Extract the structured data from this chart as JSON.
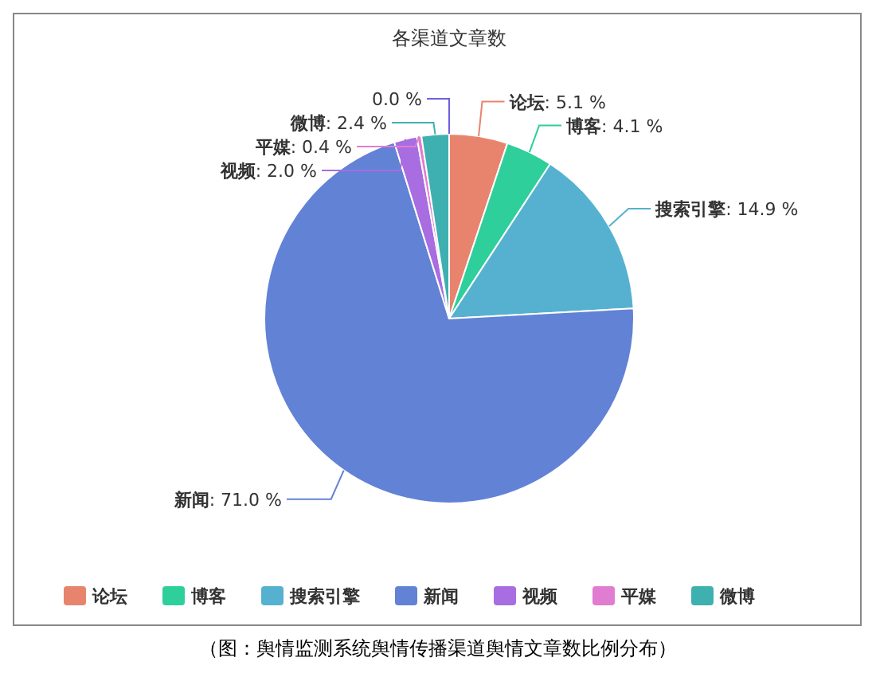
{
  "chart_data": {
    "type": "pie",
    "title": "各渠道文章数",
    "categories": [
      "论坛",
      "博客",
      "搜索引擎",
      "新闻",
      "视频",
      "平媒",
      "微博",
      null
    ],
    "values": [
      5.1,
      4.1,
      14.9,
      71.0,
      2.0,
      0.4,
      2.4,
      0.0
    ],
    "value_labels": [
      ": 5.1 %",
      ": 4.1 %",
      ": 14.9 %",
      ": 71.0 %",
      ": 2.0 %",
      ": 0.4 %",
      ": 2.4 %",
      "0.0 %"
    ],
    "colors": [
      "#e8846e",
      "#2ecf9b",
      "#56b1d0",
      "#6282d6",
      "#a86de0",
      "#e07dd0",
      "#3eb0b0",
      "#6e5fe0"
    ],
    "legend": "bottom",
    "annotations": [
      "（图：舆情监测系统舆情传播渠道舆情文章数比例分布）"
    ]
  }
}
